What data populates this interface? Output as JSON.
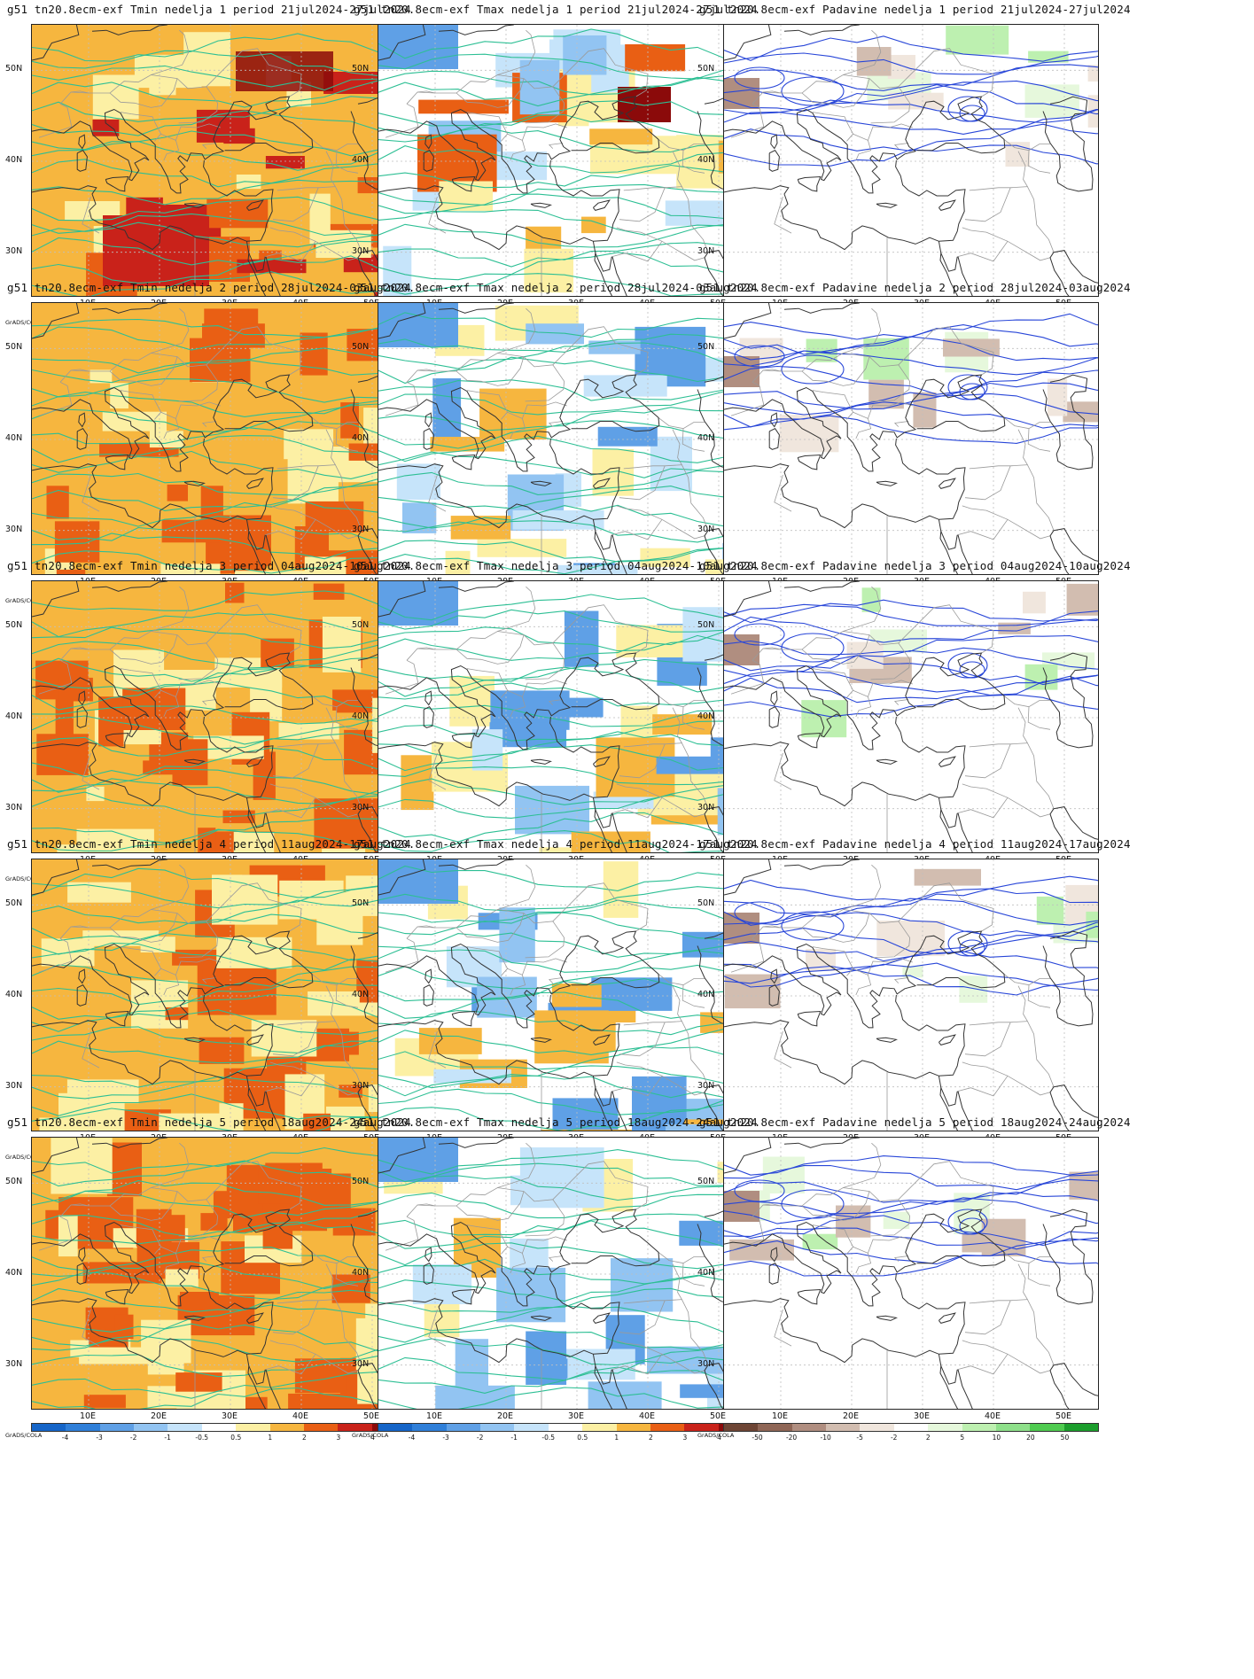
{
  "panels": [
    {
      "title": "g51 tn20.8ecm-exf Tmin nedelja 1 period 21jul2024-27jul2024",
      "variable": "Tmin",
      "week": 1
    },
    {
      "title": "g51 tn20.8ecm-exf Tmax nedelja 1 period 21jul2024-27jul2024",
      "variable": "Tmax",
      "week": 1
    },
    {
      "title": "g51 tn20.8ecm-exf Padavine nedelja 1 period 21jul2024-27jul2024",
      "variable": "Padavine",
      "week": 1
    },
    {
      "title": "g51 tn20.8ecm-exf Tmin nedelja 2 period 28jul2024-03aug2024",
      "variable": "Tmin",
      "week": 2
    },
    {
      "title": "g51 tn20.8ecm-exf Tmax nedelja 2 period 28jul2024-03aug2024",
      "variable": "Tmax",
      "week": 2
    },
    {
      "title": "g51 tn20.8ecm-exf Padavine nedelja 2 period 28jul2024-03aug2024",
      "variable": "Padavine",
      "week": 2
    },
    {
      "title": "g51 tn20.8ecm-exf Tmin nedelja 3 period 04aug2024-10aug2024",
      "variable": "Tmin",
      "week": 3
    },
    {
      "title": "g51 tn20.8ecm-exf Tmax nedelja 3 period 04aug2024-10aug2024",
      "variable": "Tmax",
      "week": 3
    },
    {
      "title": "g51 tn20.8ecm-exf Padavine nedelja 3 period 04aug2024-10aug2024",
      "variable": "Padavine",
      "week": 3
    },
    {
      "title": "g51 tn20.8ecm-exf Tmin nedelja 4 period 11aug2024-17aug2024",
      "variable": "Tmin",
      "week": 4
    },
    {
      "title": "g51 tn20.8ecm-exf Tmax nedelja 4 period 11aug2024-17aug2024",
      "variable": "Tmax",
      "week": 4
    },
    {
      "title": "g51 tn20.8ecm-exf Padavine nedelja 4 period 11aug2024-17aug2024",
      "variable": "Padavine",
      "week": 4
    },
    {
      "title": "g51 tn20.8ecm-exf Tmin nedelja 5 period 18aug2024-24aug2024",
      "variable": "Tmin",
      "week": 5
    },
    {
      "title": "g51 tn20.8ecm-exf Tmax nedelja 5 period 18aug2024-24aug2024",
      "variable": "Tmax",
      "week": 5
    },
    {
      "title": "g51 tn20.8ecm-exf Padavine nedelja 5 period 18aug2024-24aug2024",
      "variable": "Padavine",
      "week": 5
    }
  ],
  "axes": {
    "lat_labels": [
      "50N",
      "40N",
      "30N"
    ],
    "lon_labels": [
      "10E",
      "20E",
      "30E",
      "40E",
      "50E"
    ]
  },
  "colorbars": {
    "temperature": {
      "ticks": [
        "-4",
        "-3",
        "-2",
        "-1",
        "-0.5",
        "0.5",
        "1",
        "2",
        "3",
        "4"
      ],
      "colors": [
        "#1565c8",
        "#2f7fd9",
        "#5fa0e6",
        "#92c4f2",
        "#c6e4fa",
        "#ffffff",
        "#fcf0a4",
        "#f6b63f",
        "#e95f14",
        "#c9221a",
        "#8b0a0a"
      ]
    },
    "precip": {
      "ticks": [
        "-50",
        "-20",
        "-10",
        "-5",
        "-2",
        "2",
        "5",
        "10",
        "20",
        "50"
      ],
      "colors": [
        "#6e4535",
        "#8f6656",
        "#b08e80",
        "#d2bdb0",
        "#f0e6dd",
        "#ffffff",
        "#e6f8dc",
        "#bdf0b0",
        "#8ee08a",
        "#4fcb50",
        "#1c9e2c"
      ]
    }
  },
  "credit": "GrADS/COLA",
  "colors": {
    "contour_temp": "#2dbf94",
    "contour_precip": "#2846d8",
    "coastline": "#333333",
    "border": "#9a9a9a",
    "grid": "#bfbfbf"
  }
}
